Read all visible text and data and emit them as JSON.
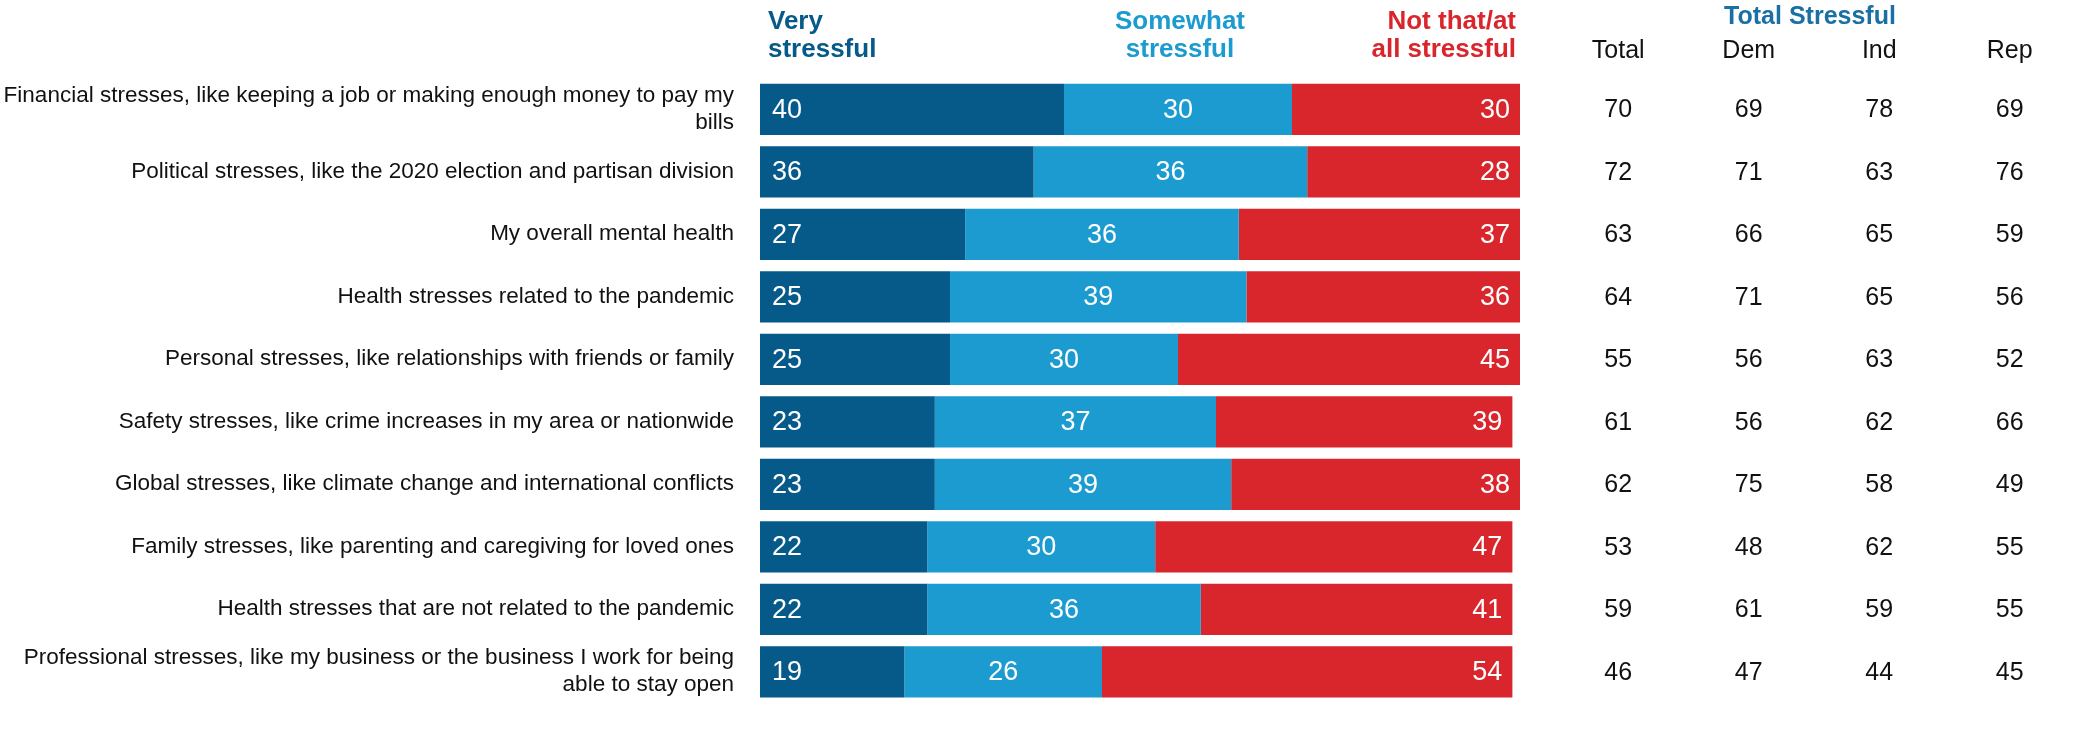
{
  "chart_data": [
    {
      "type": "bar",
      "orientation": "horizontal",
      "stacked": true,
      "data_labels": true,
      "legend": "top",
      "categories": [
        "Financial stresses, like keeping a job or making enough money to pay my bills",
        "Political stresses, like the 2020 election and partisan division",
        "My overall mental health",
        "Health stresses related to the pandemic",
        "Personal stresses, like relationships with friends or family",
        "Safety stresses, like crime increases in my area or nationwide",
        "Global stresses, like climate change and international conflicts",
        "Family stresses, like parenting and caregiving for loved ones",
        "Health stresses that are not related to the pandemic",
        "Professional stresses, like my business or the business I work for being able to stay open"
      ],
      "series": [
        {
          "name": "Very stressful",
          "color": "#065a8a",
          "values": [
            40,
            36,
            27,
            25,
            25,
            23,
            23,
            22,
            22,
            19
          ]
        },
        {
          "name": "Somewhat stressful",
          "color": "#1b9bd0",
          "values": [
            30,
            36,
            36,
            39,
            30,
            37,
            39,
            30,
            36,
            26
          ]
        },
        {
          "name": "Not that/at all stressful",
          "color": "#d9262c",
          "values": [
            30,
            28,
            37,
            36,
            45,
            39,
            38,
            47,
            41,
            54
          ]
        }
      ]
    },
    {
      "type": "heatmap",
      "title": "Total Stressful",
      "tick_labels": "x",
      "data_labels": true,
      "categories": [
        "Total",
        "Dem",
        "Ind",
        "Rep"
      ],
      "y_categories": [
        null,
        null,
        null,
        null,
        null,
        null,
        null,
        null,
        null,
        null
      ],
      "cells": [
        [
          70,
          69,
          78,
          69
        ],
        [
          72,
          71,
          63,
          76
        ],
        [
          63,
          66,
          65,
          59
        ],
        [
          64,
          71,
          65,
          56
        ],
        [
          55,
          56,
          63,
          52
        ],
        [
          61,
          56,
          62,
          66
        ],
        [
          62,
          75,
          58,
          49
        ],
        [
          53,
          48,
          62,
          55
        ],
        [
          59,
          61,
          59,
          55
        ],
        [
          46,
          47,
          44,
          45
        ]
      ]
    }
  ]
}
